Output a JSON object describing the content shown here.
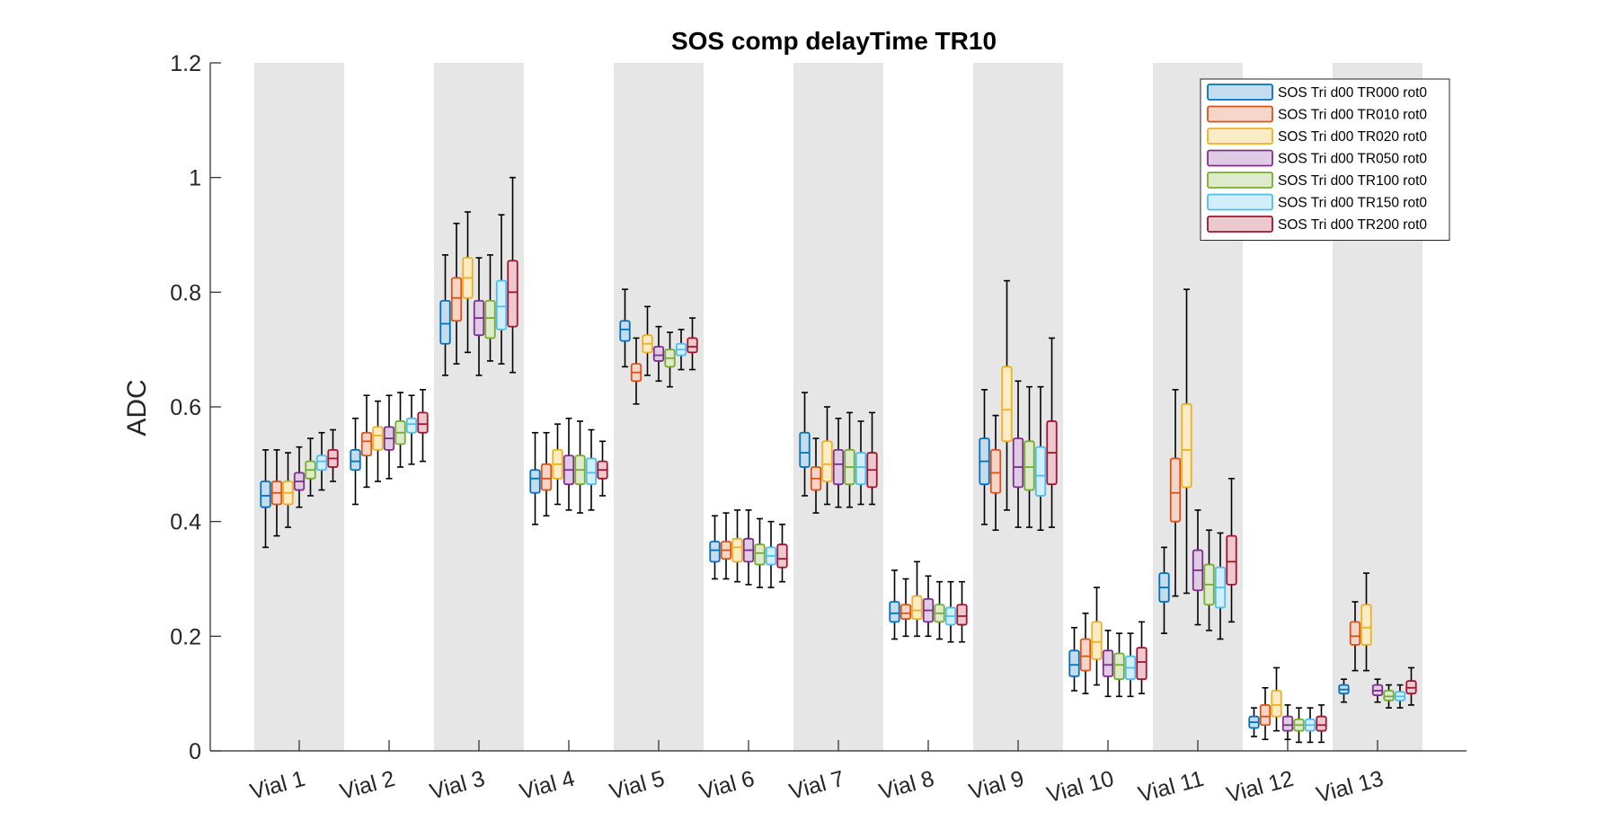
{
  "chart_data": {
    "type": "box",
    "title": "SOS comp delayTime TR10",
    "xlabel": "",
    "ylabel": "ADC",
    "ylim": [
      0,
      1.2
    ],
    "yticks": [
      0,
      0.2,
      0.4,
      0.6,
      0.8,
      1,
      1.2
    ],
    "ytick_labels": [
      "0",
      "0.2",
      "0.4",
      "0.6",
      "0.8",
      "1",
      "1.2"
    ],
    "categories": [
      "Vial 1",
      "Vial 2",
      "Vial 3",
      "Vial 4",
      "Vial 5",
      "Vial 6",
      "Vial 7",
      "Vial 8",
      "Vial 9",
      "Vial 10",
      "Vial 11",
      "Vial 12",
      "Vial 13"
    ],
    "shaded_categories": [
      0,
      2,
      4,
      6,
      8,
      10,
      12
    ],
    "shade_color": "#e6e6e6",
    "legend_position": "top-right",
    "series": [
      {
        "name": "SOS Tri d00 TR000 rot0",
        "color": "#0072bd",
        "fill": "#c5dcee",
        "boxes": [
          [
            0.355,
            0.425,
            0.445,
            0.47,
            0.525
          ],
          [
            0.43,
            0.49,
            0.505,
            0.525,
            0.58
          ],
          [
            0.655,
            0.71,
            0.745,
            0.785,
            0.865
          ],
          [
            0.395,
            0.45,
            0.475,
            0.49,
            0.555
          ],
          [
            0.67,
            0.715,
            0.735,
            0.75,
            0.805
          ],
          [
            0.3,
            0.33,
            0.35,
            0.365,
            0.41
          ],
          [
            0.445,
            0.495,
            0.52,
            0.555,
            0.625
          ],
          [
            0.195,
            0.225,
            0.24,
            0.26,
            0.315
          ],
          [
            0.395,
            0.465,
            0.505,
            0.545,
            0.63
          ],
          [
            0.105,
            0.13,
            0.15,
            0.175,
            0.215
          ],
          [
            0.205,
            0.26,
            0.285,
            0.31,
            0.355
          ],
          [
            0.025,
            0.04,
            0.05,
            0.06,
            0.075
          ],
          [
            0.085,
            0.1,
            0.107,
            0.115,
            0.125
          ]
        ]
      },
      {
        "name": "SOS Tri d00 TR010 rot0",
        "color": "#d95319",
        "fill": "#f5d5c7",
        "boxes": [
          [
            0.375,
            0.43,
            0.45,
            0.47,
            0.525
          ],
          [
            0.46,
            0.515,
            0.54,
            0.555,
            0.62
          ],
          [
            0.675,
            0.75,
            0.79,
            0.825,
            0.92
          ],
          [
            0.41,
            0.455,
            0.475,
            0.5,
            0.555
          ],
          [
            0.605,
            0.645,
            0.66,
            0.675,
            0.72
          ],
          [
            0.3,
            0.335,
            0.35,
            0.365,
            0.415
          ],
          [
            0.415,
            0.455,
            0.475,
            0.495,
            0.545
          ],
          [
            0.2,
            0.23,
            0.24,
            0.255,
            0.3
          ],
          [
            0.385,
            0.45,
            0.485,
            0.525,
            0.585
          ],
          [
            0.1,
            0.14,
            0.165,
            0.195,
            0.24
          ],
          [
            0.27,
            0.4,
            0.45,
            0.51,
            0.63
          ],
          [
            0.02,
            0.045,
            0.06,
            0.08,
            0.11
          ],
          [
            0.14,
            0.185,
            0.2,
            0.225,
            0.26
          ]
        ]
      },
      {
        "name": "SOS Tri d00 TR020 rot0",
        "color": "#edb120",
        "fill": "#fbecc7",
        "boxes": [
          [
            0.39,
            0.43,
            0.45,
            0.47,
            0.52
          ],
          [
            0.47,
            0.525,
            0.55,
            0.565,
            0.61
          ],
          [
            0.695,
            0.79,
            0.825,
            0.86,
            0.94
          ],
          [
            0.43,
            0.475,
            0.5,
            0.525,
            0.57
          ],
          [
            0.655,
            0.695,
            0.71,
            0.725,
            0.775
          ],
          [
            0.295,
            0.33,
            0.355,
            0.37,
            0.42
          ],
          [
            0.43,
            0.47,
            0.5,
            0.54,
            0.6
          ],
          [
            0.2,
            0.23,
            0.245,
            0.27,
            0.33
          ],
          [
            0.42,
            0.54,
            0.595,
            0.67,
            0.82
          ],
          [
            0.115,
            0.16,
            0.19,
            0.225,
            0.285
          ],
          [
            0.275,
            0.46,
            0.525,
            0.605,
            0.805
          ],
          [
            0.035,
            0.06,
            0.08,
            0.105,
            0.145
          ],
          [
            0.14,
            0.185,
            0.215,
            0.255,
            0.31
          ]
        ]
      },
      {
        "name": "SOS Tri d00 TR050 rot0",
        "color": "#7e2f8e",
        "fill": "#dfcbe3",
        "boxes": [
          [
            0.425,
            0.455,
            0.47,
            0.485,
            0.53
          ],
          [
            0.475,
            0.525,
            0.545,
            0.565,
            0.62
          ],
          [
            0.655,
            0.725,
            0.755,
            0.785,
            0.86
          ],
          [
            0.42,
            0.465,
            0.49,
            0.515,
            0.58
          ],
          [
            0.645,
            0.68,
            0.69,
            0.705,
            0.74
          ],
          [
            0.29,
            0.33,
            0.35,
            0.37,
            0.42
          ],
          [
            0.425,
            0.465,
            0.5,
            0.525,
            0.58
          ],
          [
            0.2,
            0.225,
            0.245,
            0.265,
            0.305
          ],
          [
            0.39,
            0.46,
            0.495,
            0.545,
            0.645
          ],
          [
            0.095,
            0.13,
            0.15,
            0.175,
            0.21
          ],
          [
            0.22,
            0.28,
            0.315,
            0.35,
            0.42
          ],
          [
            0.02,
            0.035,
            0.045,
            0.06,
            0.08
          ],
          [
            0.085,
            0.097,
            0.105,
            0.115,
            0.125
          ]
        ]
      },
      {
        "name": "SOS Tri d00 TR100 rot0",
        "color": "#77ac30",
        "fill": "#ddebcb",
        "boxes": [
          [
            0.445,
            0.475,
            0.49,
            0.505,
            0.545
          ],
          [
            0.495,
            0.535,
            0.555,
            0.575,
            0.625
          ],
          [
            0.68,
            0.72,
            0.755,
            0.785,
            0.865
          ],
          [
            0.415,
            0.465,
            0.49,
            0.515,
            0.575
          ],
          [
            0.635,
            0.67,
            0.685,
            0.7,
            0.73
          ],
          [
            0.285,
            0.325,
            0.345,
            0.36,
            0.405
          ],
          [
            0.425,
            0.465,
            0.495,
            0.525,
            0.59
          ],
          [
            0.195,
            0.225,
            0.24,
            0.255,
            0.295
          ],
          [
            0.39,
            0.455,
            0.495,
            0.54,
            0.635
          ],
          [
            0.095,
            0.125,
            0.15,
            0.17,
            0.205
          ],
          [
            0.21,
            0.255,
            0.29,
            0.325,
            0.385
          ],
          [
            0.015,
            0.035,
            0.045,
            0.055,
            0.075
          ],
          [
            0.075,
            0.088,
            0.095,
            0.105,
            0.115
          ]
        ]
      },
      {
        "name": "SOS Tri d00 TR150 rot0",
        "color": "#4dbeee",
        "fill": "#d2eefb",
        "boxes": [
          [
            0.455,
            0.49,
            0.505,
            0.515,
            0.555
          ],
          [
            0.5,
            0.555,
            0.57,
            0.58,
            0.62
          ],
          [
            0.675,
            0.735,
            0.775,
            0.82,
            0.935
          ],
          [
            0.42,
            0.465,
            0.485,
            0.51,
            0.56
          ],
          [
            0.665,
            0.69,
            0.7,
            0.71,
            0.735
          ],
          [
            0.285,
            0.325,
            0.34,
            0.355,
            0.4
          ],
          [
            0.43,
            0.465,
            0.495,
            0.52,
            0.575
          ],
          [
            0.19,
            0.22,
            0.235,
            0.25,
            0.295
          ],
          [
            0.385,
            0.445,
            0.48,
            0.53,
            0.635
          ],
          [
            0.095,
            0.125,
            0.145,
            0.165,
            0.205
          ],
          [
            0.195,
            0.25,
            0.285,
            0.32,
            0.38
          ],
          [
            0.015,
            0.035,
            0.045,
            0.055,
            0.075
          ],
          [
            0.075,
            0.088,
            0.095,
            0.103,
            0.115
          ]
        ]
      },
      {
        "name": "SOS Tri d00 TR200 rot0",
        "color": "#a2142f",
        "fill": "#ecc9cf",
        "boxes": [
          [
            0.47,
            0.495,
            0.51,
            0.525,
            0.56
          ],
          [
            0.505,
            0.555,
            0.57,
            0.59,
            0.63
          ],
          [
            0.66,
            0.74,
            0.8,
            0.855,
            1.0
          ],
          [
            0.445,
            0.475,
            0.49,
            0.505,
            0.54
          ],
          [
            0.665,
            0.695,
            0.705,
            0.72,
            0.755
          ],
          [
            0.295,
            0.32,
            0.335,
            0.36,
            0.395
          ],
          [
            0.43,
            0.46,
            0.49,
            0.52,
            0.59
          ],
          [
            0.19,
            0.22,
            0.235,
            0.255,
            0.295
          ],
          [
            0.39,
            0.465,
            0.52,
            0.575,
            0.72
          ],
          [
            0.1,
            0.125,
            0.155,
            0.18,
            0.225
          ],
          [
            0.225,
            0.29,
            0.33,
            0.375,
            0.475
          ],
          [
            0.015,
            0.035,
            0.045,
            0.06,
            0.08
          ],
          [
            0.08,
            0.1,
            0.11,
            0.122,
            0.145
          ]
        ]
      }
    ]
  }
}
